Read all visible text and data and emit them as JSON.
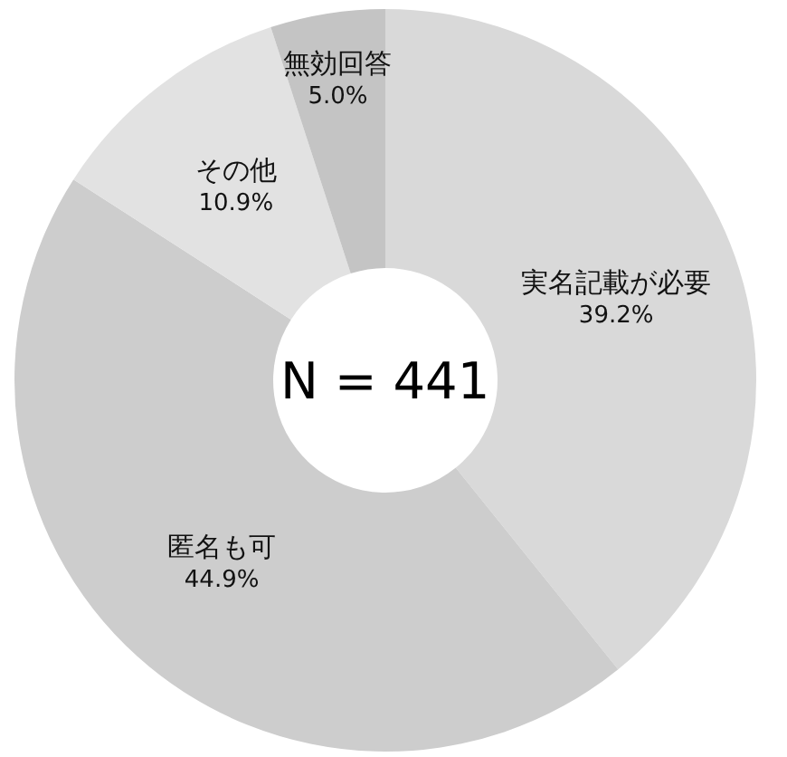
{
  "chart_data": {
    "type": "donut",
    "title": "N = 441",
    "categories": [
      "実名記載が必要",
      "匿名も可",
      "その他",
      "無効回答"
    ],
    "values": [
      39.2,
      44.9,
      10.9,
      5.0
    ],
    "value_labels": [
      "39.2%",
      "44.9%",
      "10.9%",
      "5.0%"
    ],
    "colors": [
      "#d9d9d9",
      "#cdcdcd",
      "#e2e2e2",
      "#c4c4c4"
    ]
  }
}
